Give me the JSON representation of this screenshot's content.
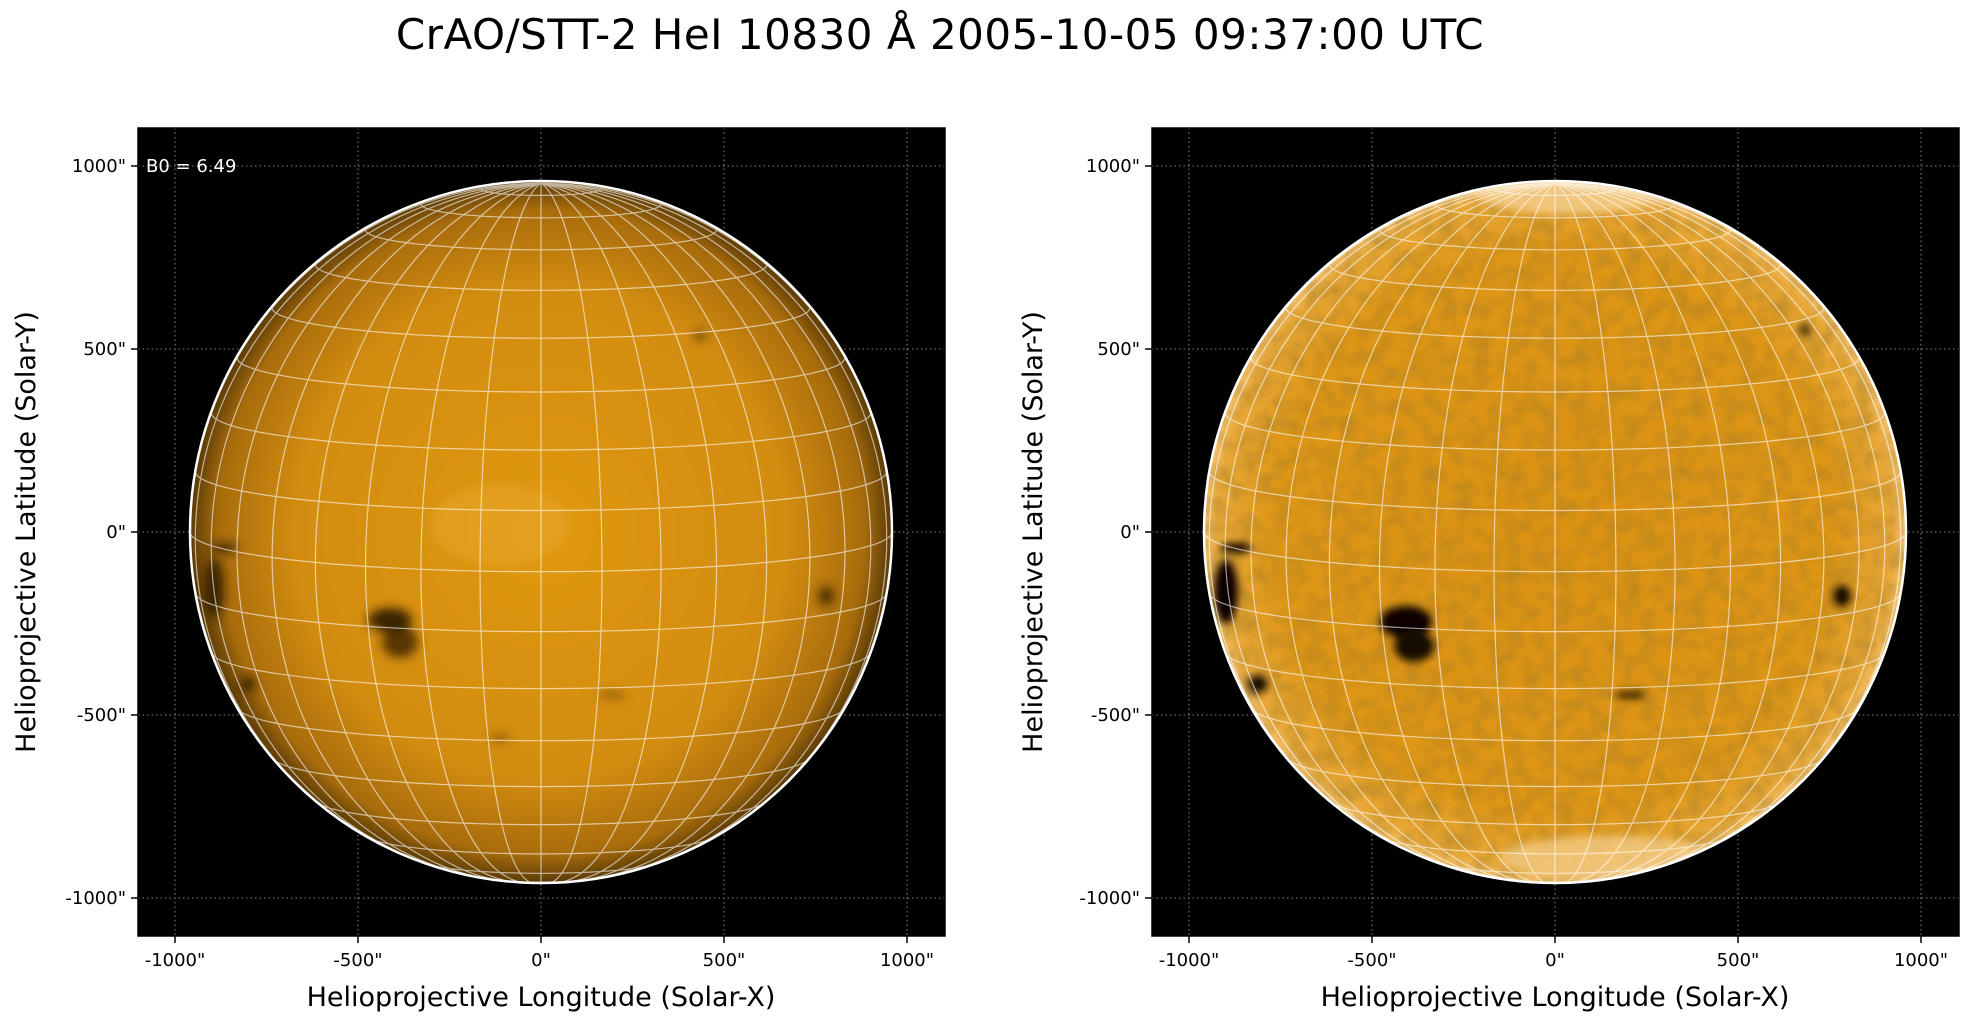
{
  "figure": {
    "title": "CrAO/STT-2 HeI 10830 Å 2005-10-05 09:37:00 UTC",
    "colors": {
      "background": "#000000",
      "disk_light": "#e29a0c",
      "disk_mid": "#c98a14",
      "disk_dark": "#2a1802",
      "grid": "#ffffff",
      "limb": "#ffffff"
    }
  },
  "panels": [
    {
      "name": "left",
      "annotation": "B0 = 6.49",
      "xlabel": "Helioprojective Longitude (Solar-X)",
      "ylabel": "Helioprojective Latitude (Solar-Y)",
      "xticks": [
        "-1000\"",
        "-500\"",
        "0\"",
        "500\"",
        "1000\""
      ],
      "yticks": [
        "1000\"",
        "500\"",
        "0\"",
        "-500\"",
        "-1000\""
      ],
      "tick_values": [
        -1000,
        -500,
        0,
        500,
        1000
      ],
      "axis_range": [
        -1100,
        1100
      ],
      "solar_radius_arcsec": 960,
      "style": "smooth"
    },
    {
      "name": "right",
      "annotation": "",
      "xlabel": "Helioprojective Longitude (Solar-X)",
      "ylabel": "Helioprojective Latitude (Solar-Y)",
      "xticks": [
        "-1000\"",
        "-500\"",
        "0\"",
        "500\"",
        "1000\""
      ],
      "yticks": [
        "1000\"",
        "500\"",
        "0\"",
        "-500\"",
        "-1000\""
      ],
      "tick_values": [
        -1000,
        -500,
        0,
        500,
        1000
      ],
      "axis_range": [
        -1100,
        1100
      ],
      "solar_radius_arcsec": 960,
      "style": "enhanced"
    }
  ]
}
